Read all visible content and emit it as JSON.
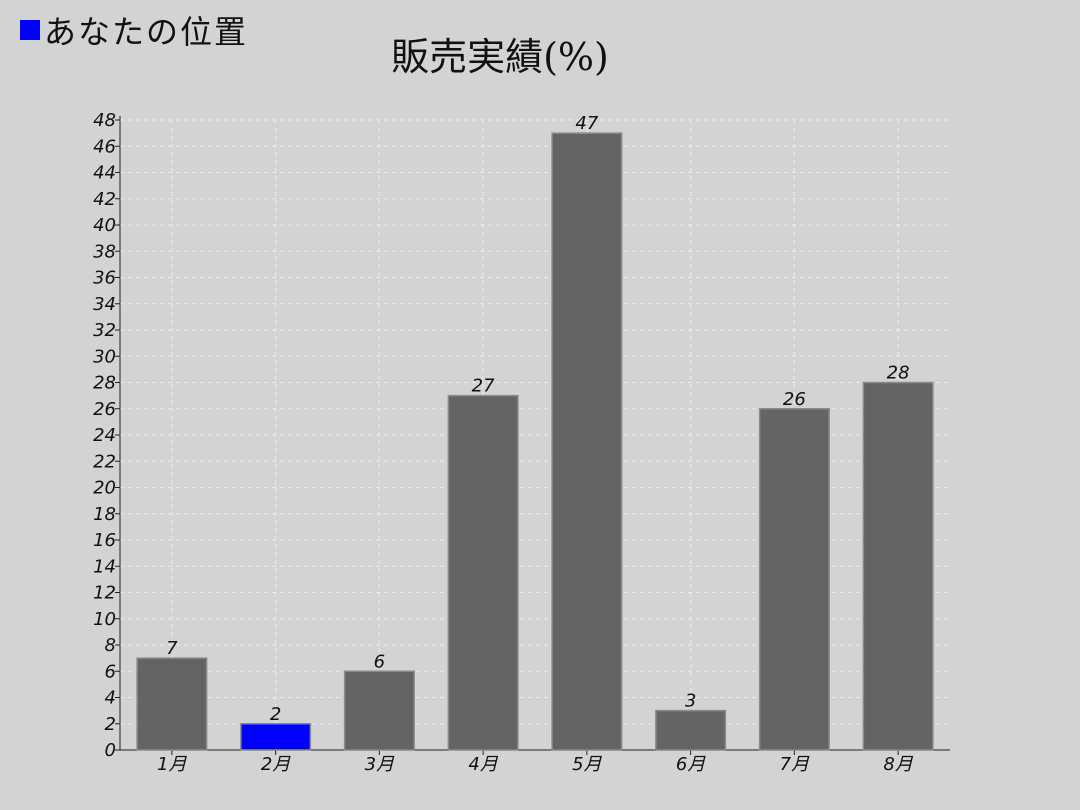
{
  "legend": {
    "label": "あなたの位置",
    "color": "#0000ff"
  },
  "chart_data": {
    "type": "bar",
    "title": "販売実績(%)",
    "categories": [
      "1月",
      "2月",
      "3月",
      "4月",
      "5月",
      "6月",
      "7月",
      "8月"
    ],
    "values": [
      7,
      2,
      6,
      27,
      47,
      3,
      26,
      28
    ],
    "highlight_index": 1,
    "bar_color": "#646464",
    "highlight_color": "#0000ff",
    "xlabel": "",
    "ylabel": "",
    "ylim": [
      0,
      48
    ],
    "y_tick_step": 2,
    "grid": true,
    "legend_position": "top-left"
  }
}
